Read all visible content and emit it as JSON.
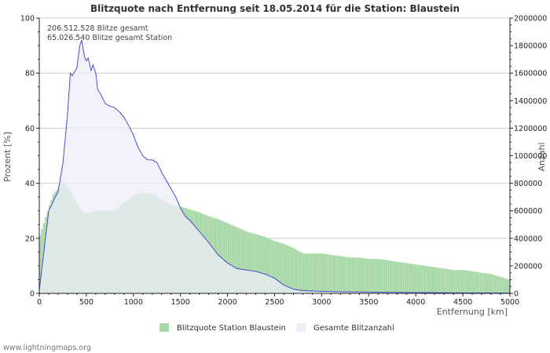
{
  "chart_data": {
    "type": "bar",
    "title": "Blitzquote nach Entfernung seit 18.05.2014 für die Station: Blaustein",
    "xlabel": "Entfernung   [km]",
    "ylabel_left": "Prozent   [%]",
    "ylabel_right": "Anzahl",
    "xlim": [
      0,
      5000
    ],
    "ylim_left": [
      0,
      100
    ],
    "ylim_right": [
      0,
      2000000
    ],
    "x_ticks": [
      0,
      500,
      1000,
      1500,
      2000,
      2500,
      3000,
      3500,
      4000,
      4500,
      5000
    ],
    "y_left_ticks": [
      0,
      20,
      40,
      60,
      80,
      100
    ],
    "y_right_ticks": [
      0,
      200000,
      400000,
      600000,
      800000,
      1000000,
      1200000,
      1400000,
      1600000,
      1800000,
      2000000
    ],
    "grid": true,
    "legend_position": "bottom",
    "annotations": [
      "206.512.528 Blitze gesamt",
      "65.026.540 Blitze gesamt Station"
    ],
    "series": [
      {
        "name": "Blitzquote Station Blaustein",
        "kind": "bar",
        "axis": "left",
        "color": "#a8d8a8",
        "x": [
          0,
          100,
          150,
          200,
          250,
          300,
          350,
          400,
          450,
          500,
          600,
          700,
          800,
          900,
          1000,
          1100,
          1200,
          1300,
          1400,
          1500,
          1600,
          1700,
          1800,
          1900,
          2000,
          2100,
          2200,
          2300,
          2400,
          2500,
          2600,
          2700,
          2800,
          2900,
          3000,
          3100,
          3200,
          3300,
          3400,
          3500,
          3600,
          3700,
          3800,
          3900,
          4000,
          4100,
          4200,
          4300,
          4400,
          4500,
          4600,
          4700,
          4800,
          4900,
          5000
        ],
        "values": [
          20,
          31,
          36,
          38,
          41,
          39,
          36,
          33,
          30,
          29,
          30,
          30,
          30,
          33,
          35.5,
          36.5,
          36,
          34,
          32,
          31.5,
          30.5,
          29.5,
          28,
          27,
          25.5,
          24,
          22.5,
          21.5,
          20.5,
          19,
          18,
          16.5,
          14.5,
          14.5,
          14.5,
          14,
          13.5,
          13,
          13,
          12.5,
          12.5,
          12,
          11.5,
          11,
          10.5,
          10,
          9.5,
          9,
          8.5,
          8.5,
          8,
          7.5,
          7,
          6,
          5
        ]
      },
      {
        "name": "Gesamte Blitzanzahl",
        "kind": "area",
        "axis": "right",
        "color": "#3b3bcc",
        "fill": "#eeeefa",
        "x": [
          0,
          100,
          200,
          250,
          300,
          330,
          350,
          400,
          430,
          450,
          480,
          500,
          520,
          550,
          570,
          600,
          620,
          650,
          700,
          750,
          800,
          850,
          900,
          950,
          1000,
          1050,
          1100,
          1150,
          1200,
          1250,
          1300,
          1350,
          1400,
          1450,
          1500,
          1550,
          1600,
          1700,
          1800,
          1900,
          2000,
          2100,
          2200,
          2300,
          2400,
          2500,
          2600,
          2700,
          2800,
          3000,
          3200,
          3400,
          3600,
          3800,
          4000,
          4200,
          4400,
          4600,
          4800,
          5000
        ],
        "values": [
          20000,
          600000,
          740000,
          940000,
          1300000,
          1600000,
          1580000,
          1640000,
          1800000,
          1840000,
          1720000,
          1690000,
          1710000,
          1620000,
          1660000,
          1600000,
          1480000,
          1450000,
          1380000,
          1360000,
          1350000,
          1320000,
          1280000,
          1220000,
          1150000,
          1060000,
          1000000,
          970000,
          970000,
          950000,
          880000,
          820000,
          760000,
          700000,
          620000,
          560000,
          530000,
          450000,
          370000,
          280000,
          220000,
          180000,
          170000,
          160000,
          140000,
          110000,
          60000,
          30000,
          20000,
          15000,
          12000,
          10000,
          8000,
          7000,
          6000,
          5000,
          4000,
          3500,
          3000,
          2500
        ]
      }
    ]
  },
  "footer": "www.lightningmaps.org"
}
